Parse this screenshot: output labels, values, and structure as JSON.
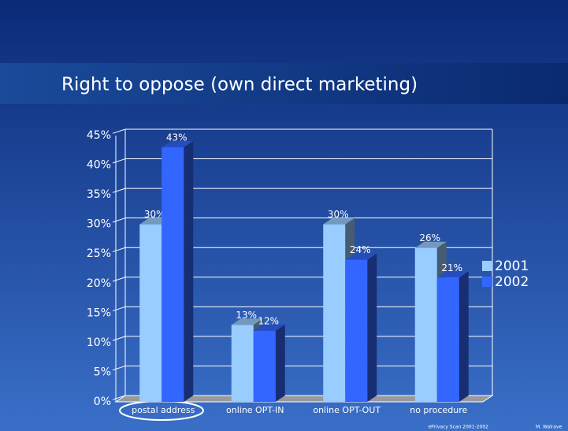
{
  "chart_data": {
    "type": "bar3d",
    "title": "Right to oppose (own direct marketing)",
    "categories": [
      "postal address",
      "online OPT-IN",
      "online OPT-OUT",
      "no procedure"
    ],
    "series": [
      {
        "name": "2001",
        "color": "#99ccff",
        "values": [
          30,
          13,
          30,
          26
        ],
        "value_labels": [
          "30%",
          "13%",
          "30%",
          "26%"
        ]
      },
      {
        "name": "2002",
        "color": "#3366ff",
        "values": [
          43,
          12,
          24,
          21
        ],
        "value_labels": [
          "43%",
          "12%",
          "24%",
          "21%"
        ]
      }
    ],
    "ylim": [
      0,
      45
    ],
    "yticks": [
      {
        "value": 0,
        "label": "0%"
      },
      {
        "value": 5,
        "label": "5%"
      },
      {
        "value": 10,
        "label": "10%"
      },
      {
        "value": 15,
        "label": "15%"
      },
      {
        "value": 20,
        "label": "20%"
      },
      {
        "value": 25,
        "label": "25%"
      },
      {
        "value": 30,
        "label": "30%"
      },
      {
        "value": 35,
        "label": "35%"
      },
      {
        "value": 40,
        "label": "40%"
      },
      {
        "value": 45,
        "label": "45%"
      }
    ],
    "grid": true,
    "legend": "right"
  },
  "footer": {
    "source": "ePrivacy Scan 2001-2002",
    "author": "M. Walrave"
  }
}
